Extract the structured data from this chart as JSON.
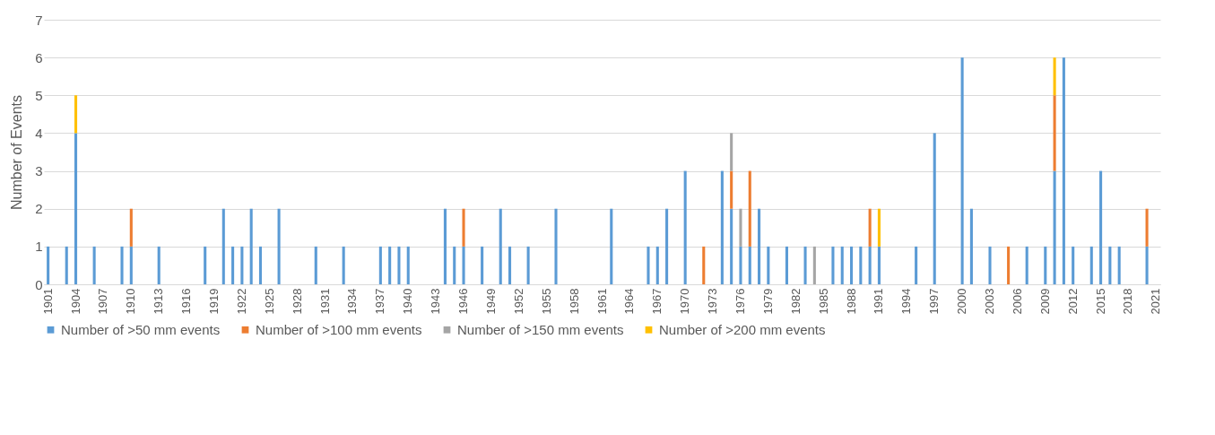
{
  "chart_data": {
    "type": "bar",
    "stacked": true,
    "ylabel": "Number of Events",
    "ylim": [
      0,
      7
    ],
    "yticks": [
      0,
      1,
      2,
      3,
      4,
      5,
      6,
      7
    ],
    "grid": "y",
    "legend": "bottom",
    "categories": [
      "1901",
      null,
      null,
      "1904",
      null,
      null,
      "1907",
      null,
      null,
      "1910",
      null,
      null,
      "1913",
      null,
      null,
      "1916",
      null,
      null,
      "1919",
      null,
      null,
      "1922",
      null,
      null,
      "1925",
      null,
      null,
      "1928",
      null,
      null,
      "1931",
      null,
      null,
      "1934",
      null,
      null,
      "1937",
      null,
      null,
      "1940",
      null,
      null,
      "1943",
      null,
      null,
      "1946",
      null,
      null,
      "1949",
      null,
      null,
      "1952",
      null,
      null,
      "1955",
      null,
      null,
      "1958",
      null,
      null,
      "1961",
      null,
      null,
      "1964",
      null,
      null,
      "1967",
      null,
      null,
      "1970",
      null,
      null,
      "1973",
      null,
      null,
      "1976",
      null,
      null,
      "1979",
      null,
      null,
      "1982",
      null,
      null,
      "1985",
      null,
      null,
      "1988",
      null,
      null,
      "1991",
      null,
      null,
      "1994",
      null,
      null,
      "1997",
      null,
      null,
      "2000",
      null,
      null,
      "2003",
      null,
      null,
      "2006",
      null,
      null,
      "2009",
      null,
      null,
      "2012",
      null,
      null,
      "2015",
      null,
      null,
      "2018",
      null,
      null,
      "2021"
    ],
    "series": [
      {
        "name": "Number of >50 mm events",
        "color": "#5b9bd5",
        "values": [
          1,
          0,
          1,
          4,
          0,
          1,
          0,
          0,
          1,
          1,
          0,
          0,
          1,
          0,
          0,
          0,
          0,
          1,
          0,
          2,
          1,
          1,
          2,
          1,
          0,
          2,
          0,
          0,
          0,
          1,
          0,
          0,
          1,
          0,
          0,
          0,
          1,
          1,
          1,
          1,
          0,
          0,
          0,
          2,
          1,
          1,
          0,
          1,
          0,
          2,
          1,
          0,
          1,
          0,
          0,
          2,
          0,
          0,
          0,
          0,
          0,
          2,
          0,
          0,
          0,
          1,
          1,
          2,
          0,
          3,
          0,
          0,
          0,
          3,
          2,
          1,
          1,
          2,
          1,
          0,
          1,
          0,
          1,
          0,
          0,
          1,
          1,
          1,
          1,
          1,
          1,
          0,
          0,
          0,
          1,
          0,
          4,
          0,
          0,
          6,
          2,
          0,
          1,
          0,
          0,
          0,
          1,
          0,
          1,
          3,
          6,
          1,
          0,
          1,
          3,
          1,
          1,
          0,
          0,
          1,
          0
        ]
      },
      {
        "name": "Number of >100 mm events",
        "color": "#ed7d31",
        "values": [
          0,
          0,
          0,
          0,
          0,
          0,
          0,
          0,
          0,
          1,
          0,
          0,
          0,
          0,
          0,
          0,
          0,
          0,
          0,
          0,
          0,
          0,
          0,
          0,
          0,
          0,
          0,
          0,
          0,
          0,
          0,
          0,
          0,
          0,
          0,
          0,
          0,
          0,
          0,
          0,
          0,
          0,
          0,
          0,
          0,
          1,
          0,
          0,
          0,
          0,
          0,
          0,
          0,
          0,
          0,
          0,
          0,
          0,
          0,
          0,
          0,
          0,
          0,
          0,
          0,
          0,
          0,
          0,
          0,
          0,
          0,
          1,
          0,
          0,
          1,
          0,
          2,
          0,
          0,
          0,
          0,
          0,
          0,
          0,
          0,
          0,
          0,
          0,
          0,
          1,
          0,
          0,
          0,
          0,
          0,
          0,
          0,
          0,
          0,
          0,
          0,
          0,
          0,
          0,
          1,
          0,
          0,
          0,
          0,
          2,
          0,
          0,
          0,
          0,
          0,
          0,
          0,
          0,
          0,
          1,
          0
        ]
      },
      {
        "name": "Number of >150 mm events",
        "color": "#a5a5a5",
        "values": [
          0,
          0,
          0,
          0,
          0,
          0,
          0,
          0,
          0,
          0,
          0,
          0,
          0,
          0,
          0,
          0,
          0,
          0,
          0,
          0,
          0,
          0,
          0,
          0,
          0,
          0,
          0,
          0,
          0,
          0,
          0,
          0,
          0,
          0,
          0,
          0,
          0,
          0,
          0,
          0,
          0,
          0,
          0,
          0,
          0,
          0,
          0,
          0,
          0,
          0,
          0,
          0,
          0,
          0,
          0,
          0,
          0,
          0,
          0,
          0,
          0,
          0,
          0,
          0,
          0,
          0,
          0,
          0,
          0,
          0,
          0,
          0,
          0,
          0,
          1,
          1,
          0,
          0,
          0,
          0,
          0,
          0,
          0,
          1,
          0,
          0,
          0,
          0,
          0,
          0,
          0,
          0,
          0,
          0,
          0,
          0,
          0,
          0,
          0,
          0,
          0,
          0,
          0,
          0,
          0,
          0,
          0,
          0,
          0,
          0,
          0,
          0,
          0,
          0,
          0,
          0,
          0,
          0,
          0,
          0,
          0
        ]
      },
      {
        "name": "Number of >200 mm events",
        "color": "#ffc000",
        "values": [
          0,
          0,
          0,
          1,
          0,
          0,
          0,
          0,
          0,
          0,
          0,
          0,
          0,
          0,
          0,
          0,
          0,
          0,
          0,
          0,
          0,
          0,
          0,
          0,
          0,
          0,
          0,
          0,
          0,
          0,
          0,
          0,
          0,
          0,
          0,
          0,
          0,
          0,
          0,
          0,
          0,
          0,
          0,
          0,
          0,
          0,
          0,
          0,
          0,
          0,
          0,
          0,
          0,
          0,
          0,
          0,
          0,
          0,
          0,
          0,
          0,
          0,
          0,
          0,
          0,
          0,
          0,
          0,
          0,
          0,
          0,
          0,
          0,
          0,
          0,
          0,
          0,
          0,
          0,
          0,
          0,
          0,
          0,
          0,
          0,
          0,
          0,
          0,
          0,
          0,
          1,
          0,
          0,
          0,
          0,
          0,
          0,
          0,
          0,
          0,
          0,
          0,
          0,
          0,
          0,
          0,
          0,
          0,
          0,
          1,
          0,
          0,
          0,
          0,
          0,
          0,
          0,
          0,
          0,
          0,
          0
        ]
      }
    ]
  }
}
